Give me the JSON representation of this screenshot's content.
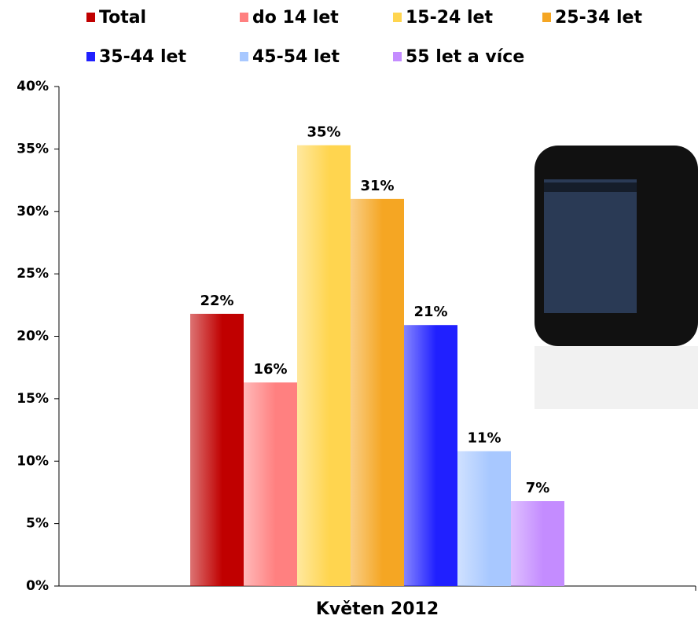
{
  "chart_data": {
    "type": "bar",
    "categories": [
      "Květen 2012"
    ],
    "series": [
      {
        "name": "Total",
        "color": "#c00000",
        "values": [
          21.8
        ],
        "value_labels": [
          "22%"
        ]
      },
      {
        "name": "do 14 let",
        "color": "#ff8080",
        "values": [
          16.3
        ],
        "value_labels": [
          "16%"
        ]
      },
      {
        "name": "15-24 let",
        "color": "#ffd54f",
        "values": [
          35.3
        ],
        "value_labels": [
          "35%"
        ]
      },
      {
        "name": "25-34 let",
        "color": "#f5a623",
        "values": [
          31
        ],
        "value_labels": [
          "31%"
        ]
      },
      {
        "name": "35-44 let",
        "color": "#2020ff",
        "values": [
          20.9
        ],
        "value_labels": [
          "21%"
        ]
      },
      {
        "name": "45-54 let",
        "color": "#a8c8ff",
        "values": [
          10.8
        ],
        "value_labels": [
          "11%"
        ]
      },
      {
        "name": "55 let a více",
        "color": "#c48cff",
        "values": [
          6.8
        ],
        "value_labels": [
          "7%"
        ]
      }
    ],
    "ylim": [
      0,
      40
    ],
    "yticks": [
      {
        "value": 0,
        "label": "0%"
      },
      {
        "value": 5,
        "label": "5%"
      },
      {
        "value": 10,
        "label": "10%"
      },
      {
        "value": 15,
        "label": "15%"
      },
      {
        "value": 20,
        "label": "20%"
      },
      {
        "value": 25,
        "label": "25%"
      },
      {
        "value": 30,
        "label": "30%"
      },
      {
        "value": 35,
        "label": "35%"
      },
      {
        "value": 40,
        "label": "40%"
      }
    ],
    "grid": false
  }
}
